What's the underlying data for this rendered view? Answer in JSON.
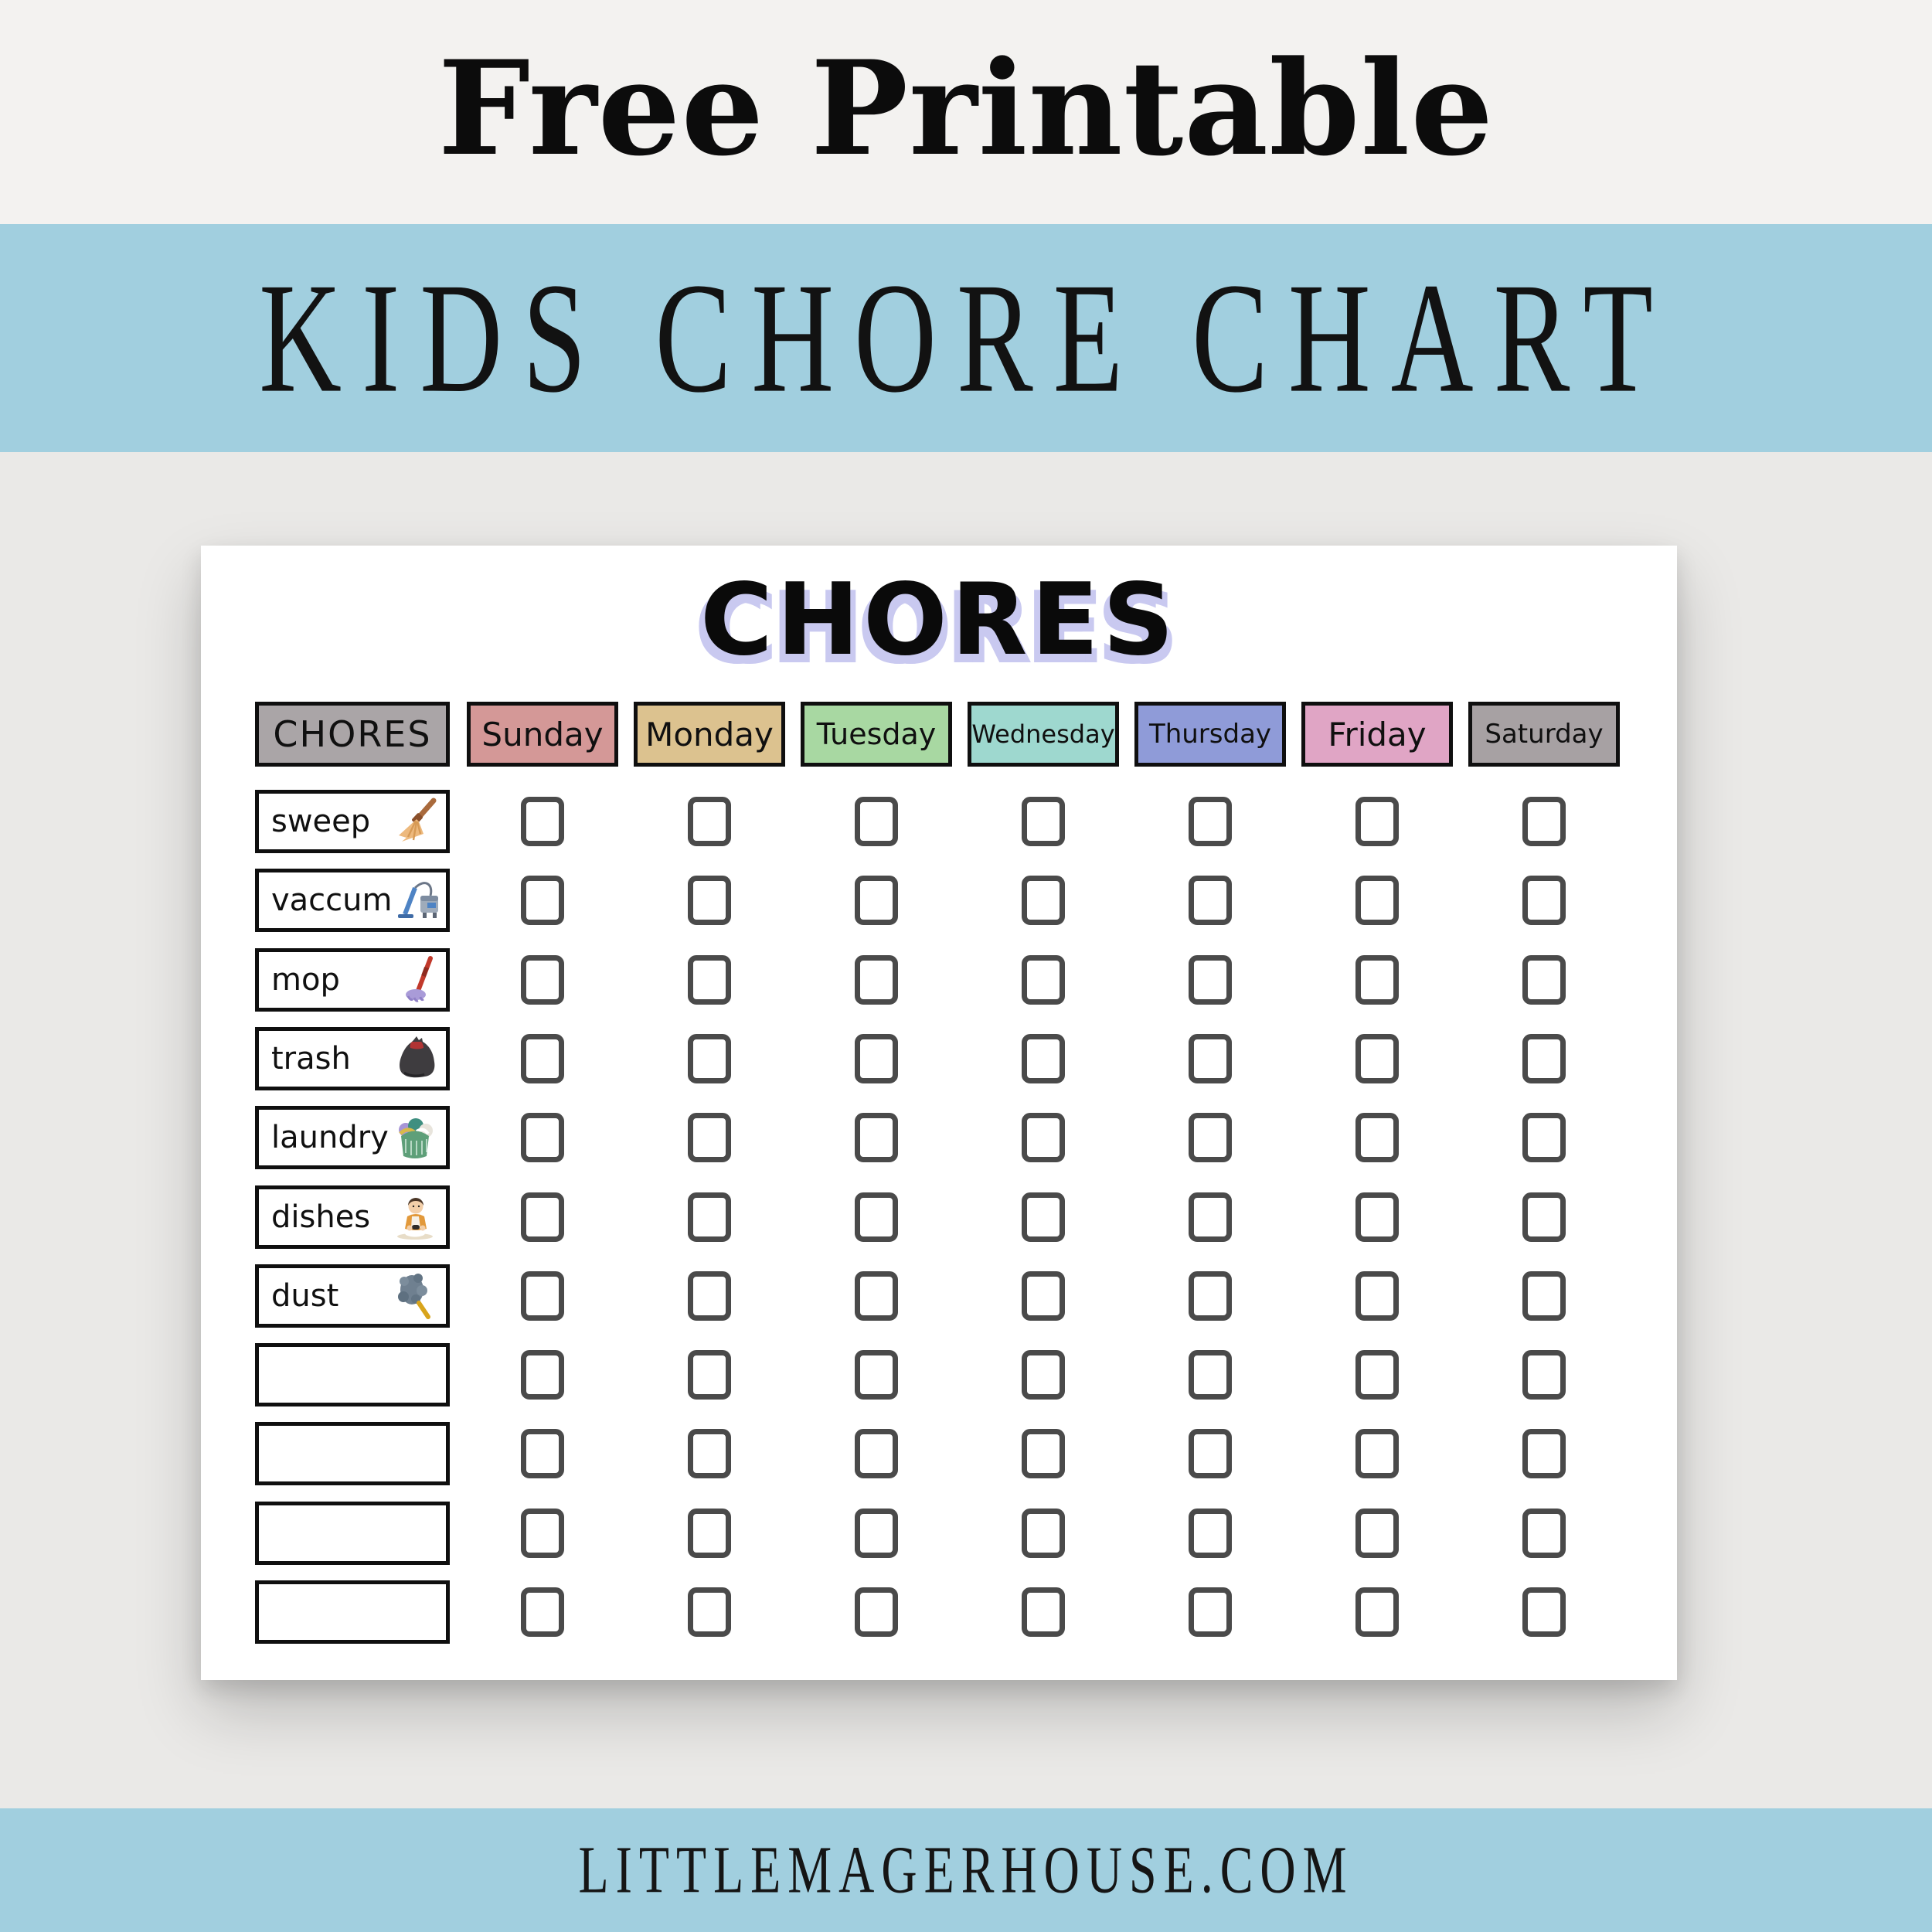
{
  "page": {
    "eyebrow": "Free Printable",
    "banner_title": "KIDS CHORE CHART",
    "footer_url": "LITTLEMAGERHOUSE.COM"
  },
  "colors": {
    "background": "#EAE9E7",
    "banner_blue": "#A1CFDF",
    "card_white": "#FFFFFF",
    "title_shadow_lavender": "#C9C9F0",
    "checkbox_border": "#4A4A4A",
    "header_border_black": "#0F0F0F"
  },
  "chart": {
    "title": "CHORES",
    "header": {
      "chores_label": "CHORES",
      "chores_color": "#AAA5A7",
      "days": [
        {
          "label": "Sunday",
          "color": "#D49897"
        },
        {
          "label": "Monday",
          "color": "#DCC28F"
        },
        {
          "label": "Tuesday",
          "color": "#A8D8A2"
        },
        {
          "label": "Wednesday",
          "color": "#9ED8CF"
        },
        {
          "label": "Thursday",
          "color": "#8F9BD8"
        },
        {
          "label": "Friday",
          "color": "#E0A5C5"
        },
        {
          "label": "Saturday",
          "color": "#A7A1A3"
        }
      ]
    },
    "rows": [
      {
        "label": "sweep",
        "icon": "broom-icon"
      },
      {
        "label": "vaccum",
        "icon": "vacuum-icon"
      },
      {
        "label": "mop",
        "icon": "mop-icon"
      },
      {
        "label": "trash",
        "icon": "trash-bag-icon"
      },
      {
        "label": "laundry",
        "icon": "laundry-basket-icon"
      },
      {
        "label": "dishes",
        "icon": "dishwashing-icon"
      },
      {
        "label": "dust",
        "icon": "duster-icon"
      },
      {
        "label": "",
        "icon": null
      },
      {
        "label": "",
        "icon": null
      },
      {
        "label": "",
        "icon": null
      },
      {
        "label": "",
        "icon": null
      }
    ],
    "checkboxes": {
      "rows": 11,
      "columns": 7,
      "checked": []
    }
  }
}
